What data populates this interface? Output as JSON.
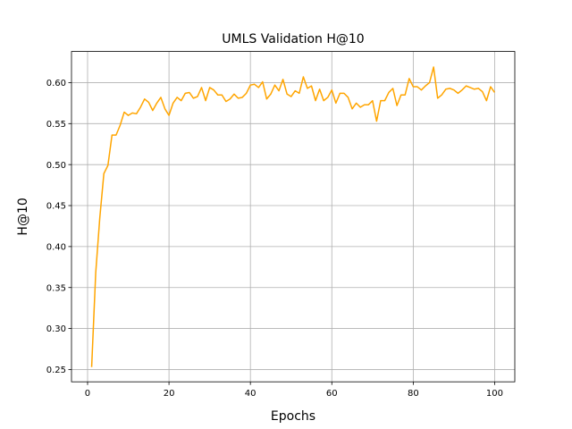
{
  "chart_data": {
    "type": "line",
    "title": "UMLS Validation H@10",
    "xlabel": "Epochs",
    "ylabel": "H@10",
    "xlim": [
      -3.95,
      104.95
    ],
    "ylim": [
      0.235,
      0.638
    ],
    "xticks": [
      0,
      20,
      40,
      60,
      80,
      100
    ],
    "yticks": [
      0.25,
      0.3,
      0.35,
      0.4,
      0.45,
      0.5,
      0.55,
      0.6
    ],
    "xtick_labels": [
      "0",
      "20",
      "40",
      "60",
      "80",
      "100"
    ],
    "ytick_labels": [
      "0.25",
      "0.30",
      "0.35",
      "0.40",
      "0.45",
      "0.50",
      "0.55",
      "0.60"
    ],
    "grid": true,
    "line_color": "#FFA500",
    "series": [
      {
        "x": [
          1,
          2,
          3,
          4,
          5,
          6,
          7,
          8,
          9,
          10,
          11,
          12,
          13,
          14,
          15,
          16,
          17,
          18,
          19,
          20,
          21,
          22,
          23,
          24,
          25,
          26,
          27,
          28,
          29,
          30,
          31,
          32,
          33,
          34,
          35,
          36,
          37,
          38,
          39,
          40,
          41,
          42,
          43,
          44,
          45,
          46,
          47,
          48,
          49,
          50,
          51,
          52,
          53,
          54,
          55,
          56,
          57,
          58,
          59,
          60,
          61,
          62,
          63,
          64,
          65,
          66,
          67,
          68,
          69,
          70,
          71,
          72,
          73,
          74,
          75,
          76,
          77,
          78,
          79,
          80,
          81,
          82,
          83,
          84,
          85,
          86,
          87,
          88,
          89,
          90,
          91,
          92,
          93,
          94,
          95,
          96,
          97,
          98,
          99,
          100
        ],
        "values": [
          0.253,
          0.368,
          0.435,
          0.489,
          0.499,
          0.536,
          0.536,
          0.548,
          0.564,
          0.56,
          0.563,
          0.562,
          0.57,
          0.58,
          0.576,
          0.566,
          0.575,
          0.582,
          0.568,
          0.56,
          0.575,
          0.582,
          0.578,
          0.587,
          0.588,
          0.581,
          0.583,
          0.594,
          0.578,
          0.594,
          0.591,
          0.585,
          0.585,
          0.577,
          0.58,
          0.586,
          0.581,
          0.582,
          0.587,
          0.597,
          0.598,
          0.594,
          0.601,
          0.58,
          0.586,
          0.597,
          0.59,
          0.604,
          0.586,
          0.583,
          0.59,
          0.587,
          0.607,
          0.593,
          0.596,
          0.578,
          0.592,
          0.578,
          0.582,
          0.591,
          0.575,
          0.587,
          0.587,
          0.582,
          0.568,
          0.575,
          0.57,
          0.573,
          0.573,
          0.578,
          0.553,
          0.578,
          0.578,
          0.588,
          0.593,
          0.572,
          0.585,
          0.585,
          0.605,
          0.595,
          0.595,
          0.591,
          0.596,
          0.6,
          0.619,
          0.581,
          0.585,
          0.592,
          0.593,
          0.591,
          0.587,
          0.591,
          0.596,
          0.594,
          0.592,
          0.593,
          0.589,
          0.578,
          0.595,
          0.588
        ]
      }
    ]
  }
}
